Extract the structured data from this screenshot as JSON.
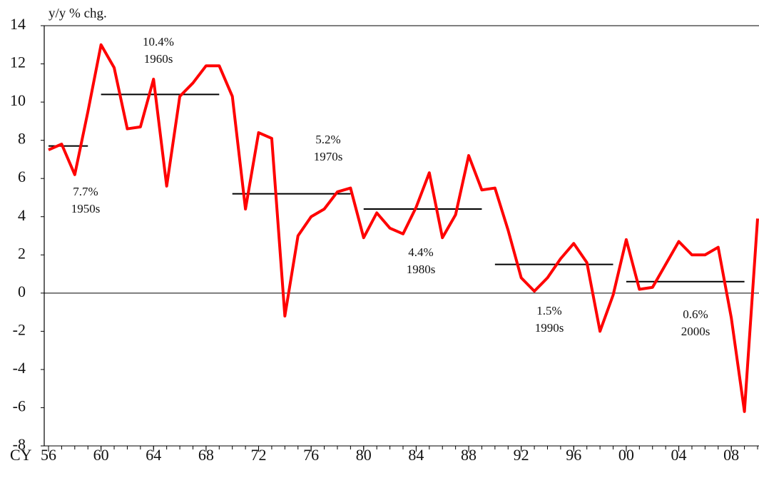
{
  "chart_data": {
    "type": "line",
    "y_label": "y/y % chg.",
    "x_label": "CY",
    "x": [
      1956,
      1957,
      1958,
      1959,
      1960,
      1961,
      1962,
      1963,
      1964,
      1965,
      1966,
      1967,
      1968,
      1969,
      1970,
      1971,
      1972,
      1973,
      1974,
      1975,
      1976,
      1977,
      1978,
      1979,
      1980,
      1981,
      1982,
      1983,
      1984,
      1985,
      1986,
      1987,
      1988,
      1989,
      1990,
      1991,
      1992,
      1993,
      1994,
      1995,
      1996,
      1997,
      1998,
      1999,
      2000,
      2001,
      2002,
      2003,
      2004,
      2005,
      2006,
      2007,
      2008,
      2009,
      2010
    ],
    "series": [
      {
        "color": "#ff0000",
        "values": [
          7.5,
          7.8,
          6.2,
          9.5,
          13.0,
          11.8,
          8.6,
          8.7,
          11.2,
          5.6,
          10.3,
          11.0,
          11.9,
          11.9,
          10.3,
          4.4,
          8.4,
          8.1,
          -1.2,
          3.0,
          4.0,
          4.4,
          5.3,
          5.5,
          2.9,
          4.2,
          3.4,
          3.1,
          4.5,
          6.3,
          2.9,
          4.1,
          7.2,
          5.4,
          5.5,
          3.3,
          0.8,
          0.1,
          0.8,
          1.8,
          2.6,
          1.6,
          -2.0,
          -0.1,
          2.8,
          0.2,
          0.3,
          1.5,
          2.7,
          2.0,
          2.0,
          2.4,
          -1.3,
          -6.2,
          3.9
        ]
      }
    ],
    "averages": [
      {
        "label": "1950s",
        "value": 7.7,
        "value_label": "7.7%",
        "start": 1956,
        "end": 1959
      },
      {
        "label": "1960s",
        "value": 10.4,
        "value_label": "10.4%",
        "start": 1960,
        "end": 1969
      },
      {
        "label": "1970s",
        "value": 5.2,
        "value_label": "5.2%",
        "start": 1970,
        "end": 1979
      },
      {
        "label": "1980s",
        "value": 4.4,
        "value_label": "4.4%",
        "start": 1980,
        "end": 1989
      },
      {
        "label": "1990s",
        "value": 1.5,
        "value_label": "1.5%",
        "start": 1990,
        "end": 1999
      },
      {
        "label": "2000s",
        "value": 0.6,
        "value_label": "0.6%",
        "start": 2000,
        "end": 2009
      }
    ],
    "xlim": [
      1956,
      2010
    ],
    "ylim": [
      -8,
      14
    ],
    "yticks": [
      -8,
      -6,
      -4,
      -2,
      0,
      2,
      4,
      6,
      8,
      10,
      12,
      14
    ],
    "xticks": [
      {
        "value": 1956,
        "label": "56"
      },
      {
        "value": 1960,
        "label": "60"
      },
      {
        "value": 1964,
        "label": "64"
      },
      {
        "value": 1968,
        "label": "68"
      },
      {
        "value": 1972,
        "label": "72"
      },
      {
        "value": 1976,
        "label": "76"
      },
      {
        "value": 1980,
        "label": "80"
      },
      {
        "value": 1984,
        "label": "84"
      },
      {
        "value": 1988,
        "label": "88"
      },
      {
        "value": 1992,
        "label": "92"
      },
      {
        "value": 1996,
        "label": "96"
      },
      {
        "value": 2000,
        "label": "00"
      },
      {
        "value": 2004,
        "label": "04"
      },
      {
        "value": 2008,
        "label": "08"
      }
    ]
  }
}
